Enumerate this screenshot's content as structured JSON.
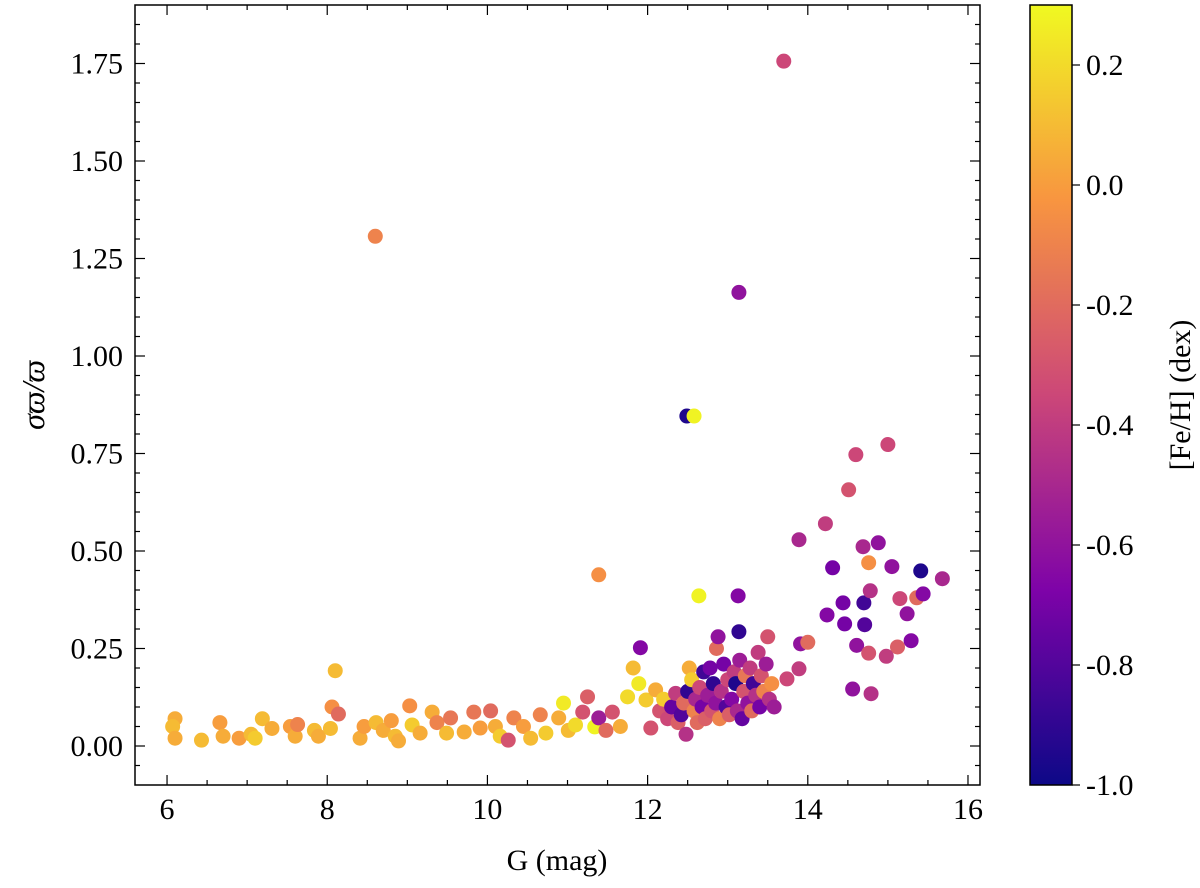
{
  "chart_data": {
    "type": "scatter",
    "xlabel": "G (mag)",
    "ylabel": "σϖ/ϖ",
    "xlim": [
      5.6,
      16.15
    ],
    "ylim": [
      -0.1,
      1.9
    ],
    "xticks": [
      6,
      8,
      10,
      12,
      14,
      16
    ],
    "xtick_labels": [
      "6",
      "8",
      "10",
      "12",
      "14",
      "16"
    ],
    "yticks": [
      0,
      0.25,
      0.5,
      0.75,
      1.0,
      1.25,
      1.5,
      1.75
    ],
    "ytick_labels": [
      "0.00",
      "0.25",
      "0.50",
      "0.75",
      "1.00",
      "1.25",
      "1.50",
      "1.75"
    ],
    "grid": false,
    "colorbar": {
      "label": "[Fe/H] (dex)",
      "colormap": "plasma",
      "range": [
        -1.0,
        0.3
      ],
      "ticks": [
        0.2,
        0.0,
        -0.2,
        -0.4,
        -0.6,
        -0.8,
        -1.0
      ],
      "tick_labels": [
        "0.2",
        "0.0",
        "-0.2",
        "-0.4",
        "-0.6",
        "-0.8",
        "-1.0"
      ],
      "colors": [
        "#0d0887",
        "#7e03a8",
        "#cc4778",
        "#f89540",
        "#f0f921"
      ]
    },
    "point_fields": [
      "G",
      "sigma_plx_over_plx",
      "FeH"
    ],
    "points": [
      [
        13.7,
        1.756,
        -0.35
      ],
      [
        8.6,
        1.307,
        -0.1
      ],
      [
        13.14,
        1.163,
        -0.6
      ],
      [
        12.49,
        0.846,
        -0.95
      ],
      [
        12.58,
        0.846,
        0.28
      ],
      [
        11.39,
        0.439,
        -0.05
      ],
      [
        12.64,
        0.385,
        0.28
      ],
      [
        13.13,
        0.385,
        -0.65
      ],
      [
        13.14,
        0.293,
        -0.9
      ],
      [
        15.0,
        0.773,
        -0.35
      ],
      [
        14.6,
        0.747,
        -0.35
      ],
      [
        14.51,
        0.657,
        -0.3
      ],
      [
        14.22,
        0.57,
        -0.4
      ],
      [
        13.89,
        0.529,
        -0.5
      ],
      [
        14.88,
        0.521,
        -0.6
      ],
      [
        14.69,
        0.511,
        -0.5
      ],
      [
        15.05,
        0.46,
        -0.6
      ],
      [
        14.31,
        0.457,
        -0.7
      ],
      [
        15.41,
        0.449,
        -0.95
      ],
      [
        15.68,
        0.429,
        -0.5
      ],
      [
        14.76,
        0.47,
        -0.05
      ],
      [
        14.44,
        0.367,
        -0.7
      ],
      [
        14.7,
        0.367,
        -0.85
      ],
      [
        14.24,
        0.336,
        -0.65
      ],
      [
        14.46,
        0.313,
        -0.7
      ],
      [
        14.71,
        0.311,
        -0.8
      ],
      [
        14.78,
        0.398,
        -0.45
      ],
      [
        15.15,
        0.378,
        -0.35
      ],
      [
        15.36,
        0.38,
        -0.2
      ],
      [
        15.44,
        0.39,
        -0.65
      ],
      [
        15.24,
        0.339,
        -0.6
      ],
      [
        15.12,
        0.254,
        -0.25
      ],
      [
        14.98,
        0.23,
        -0.4
      ],
      [
        15.29,
        0.27,
        -0.65
      ],
      [
        14.61,
        0.258,
        -0.6
      ],
      [
        14.76,
        0.238,
        -0.3
      ],
      [
        14.56,
        0.146,
        -0.6
      ],
      [
        14.79,
        0.134,
        -0.45
      ],
      [
        13.91,
        0.262,
        -0.6
      ],
      [
        14.0,
        0.266,
        -0.2
      ],
      [
        13.89,
        0.198,
        -0.4
      ],
      [
        13.74,
        0.172,
        -0.35
      ],
      [
        6.1,
        0.07,
        0.05
      ],
      [
        6.07,
        0.05,
        0.1
      ],
      [
        6.1,
        0.02,
        0.05
      ],
      [
        6.43,
        0.015,
        0.1
      ],
      [
        6.66,
        0.06,
        0.0
      ],
      [
        6.7,
        0.025,
        0.05
      ],
      [
        6.9,
        0.02,
        0.0
      ],
      [
        7.05,
        0.03,
        0.1
      ],
      [
        7.1,
        0.02,
        0.15
      ],
      [
        7.19,
        0.07,
        0.1
      ],
      [
        7.31,
        0.045,
        0.05
      ],
      [
        7.54,
        0.05,
        0.0
      ],
      [
        7.6,
        0.025,
        0.05
      ],
      [
        7.63,
        0.055,
        -0.1
      ],
      [
        7.84,
        0.04,
        0.1
      ],
      [
        7.89,
        0.025,
        0.05
      ],
      [
        8.06,
        0.1,
        -0.05
      ],
      [
        8.1,
        0.193,
        0.1
      ],
      [
        8.14,
        0.082,
        -0.2
      ],
      [
        8.04,
        0.045,
        0.1
      ],
      [
        8.41,
        0.02,
        0.05
      ],
      [
        8.46,
        0.05,
        0.0
      ],
      [
        8.61,
        0.06,
        0.1
      ],
      [
        8.7,
        0.04,
        0.05
      ],
      [
        8.8,
        0.065,
        0.0
      ],
      [
        8.85,
        0.025,
        0.1
      ],
      [
        8.89,
        0.013,
        0.05
      ],
      [
        9.03,
        0.103,
        -0.05
      ],
      [
        9.06,
        0.054,
        0.15
      ],
      [
        9.16,
        0.033,
        0.05
      ],
      [
        9.31,
        0.087,
        0.05
      ],
      [
        9.37,
        0.06,
        -0.1
      ],
      [
        9.49,
        0.033,
        0.1
      ],
      [
        9.54,
        0.072,
        -0.15
      ],
      [
        9.71,
        0.036,
        0.05
      ],
      [
        9.83,
        0.087,
        -0.15
      ],
      [
        9.91,
        0.046,
        0.0
      ],
      [
        10.04,
        0.09,
        -0.2
      ],
      [
        10.1,
        0.05,
        0.05
      ],
      [
        10.16,
        0.025,
        0.15
      ],
      [
        10.26,
        0.015,
        -0.3
      ],
      [
        10.33,
        0.072,
        -0.1
      ],
      [
        10.45,
        0.05,
        0.0
      ],
      [
        10.54,
        0.02,
        0.1
      ],
      [
        10.66,
        0.08,
        -0.1
      ],
      [
        10.73,
        0.033,
        0.15
      ],
      [
        10.89,
        0.072,
        0.05
      ],
      [
        10.95,
        0.11,
        0.25
      ],
      [
        11.01,
        0.04,
        0.1
      ],
      [
        11.1,
        0.054,
        0.2
      ],
      [
        11.19,
        0.087,
        -0.3
      ],
      [
        11.25,
        0.126,
        -0.25
      ],
      [
        11.34,
        0.049,
        0.28
      ],
      [
        11.39,
        0.072,
        -0.55
      ],
      [
        11.48,
        0.04,
        -0.2
      ],
      [
        11.56,
        0.087,
        -0.3
      ],
      [
        11.66,
        0.05,
        0.05
      ],
      [
        11.75,
        0.126,
        0.2
      ],
      [
        11.82,
        0.2,
        0.1
      ],
      [
        11.89,
        0.16,
        0.25
      ],
      [
        11.91,
        0.252,
        -0.65
      ],
      [
        11.98,
        0.118,
        0.15
      ],
      [
        12.04,
        0.046,
        -0.3
      ],
      [
        12.1,
        0.144,
        0.05
      ],
      [
        12.15,
        0.09,
        -0.3
      ],
      [
        12.2,
        0.12,
        0.15
      ],
      [
        12.25,
        0.07,
        -0.35
      ],
      [
        12.3,
        0.1,
        -0.75
      ],
      [
        12.35,
        0.135,
        -0.4
      ],
      [
        12.38,
        0.06,
        -0.25
      ],
      [
        12.42,
        0.08,
        -0.8
      ],
      [
        12.45,
        0.11,
        -0.2
      ],
      [
        12.48,
        0.03,
        -0.45
      ],
      [
        12.5,
        0.14,
        -0.9
      ],
      [
        12.52,
        0.2,
        0.05
      ],
      [
        12.55,
        0.17,
        0.15
      ],
      [
        12.58,
        0.09,
        -0.1
      ],
      [
        12.6,
        0.12,
        -0.5
      ],
      [
        12.62,
        0.06,
        -0.2
      ],
      [
        12.65,
        0.15,
        -0.35
      ],
      [
        12.68,
        0.1,
        -0.7
      ],
      [
        12.7,
        0.19,
        -0.85
      ],
      [
        12.72,
        0.07,
        -0.25
      ],
      [
        12.75,
        0.13,
        -0.55
      ],
      [
        12.78,
        0.2,
        -0.7
      ],
      [
        12.8,
        0.09,
        -0.3
      ],
      [
        12.82,
        0.16,
        -0.9
      ],
      [
        12.85,
        0.11,
        -0.6
      ],
      [
        12.86,
        0.25,
        -0.2
      ],
      [
        12.88,
        0.28,
        -0.6
      ],
      [
        12.9,
        0.07,
        -0.1
      ],
      [
        12.92,
        0.14,
        -0.45
      ],
      [
        12.95,
        0.21,
        -0.7
      ],
      [
        12.98,
        0.1,
        -0.8
      ],
      [
        13.0,
        0.17,
        -0.35
      ],
      [
        13.02,
        0.08,
        -0.25
      ],
      [
        13.05,
        0.12,
        -0.65
      ],
      [
        13.08,
        0.19,
        -0.4
      ],
      [
        13.1,
        0.16,
        -0.95
      ],
      [
        13.12,
        0.09,
        -0.5
      ],
      [
        13.15,
        0.22,
        -0.55
      ],
      [
        13.18,
        0.07,
        -0.75
      ],
      [
        13.2,
        0.14,
        -0.3
      ],
      [
        13.22,
        0.18,
        -0.15
      ],
      [
        13.25,
        0.11,
        -0.6
      ],
      [
        13.28,
        0.2,
        -0.4
      ],
      [
        13.3,
        0.09,
        -0.2
      ],
      [
        13.32,
        0.16,
        -0.85
      ],
      [
        13.35,
        0.13,
        -0.45
      ],
      [
        13.38,
        0.24,
        -0.4
      ],
      [
        13.4,
        0.1,
        -0.7
      ],
      [
        13.42,
        0.18,
        -0.3
      ],
      [
        13.45,
        0.14,
        -0.1
      ],
      [
        13.48,
        0.21,
        -0.55
      ],
      [
        13.5,
        0.28,
        -0.3
      ],
      [
        13.52,
        0.12,
        -0.45
      ],
      [
        13.55,
        0.16,
        -0.05
      ],
      [
        13.58,
        0.1,
        -0.55
      ]
    ]
  }
}
